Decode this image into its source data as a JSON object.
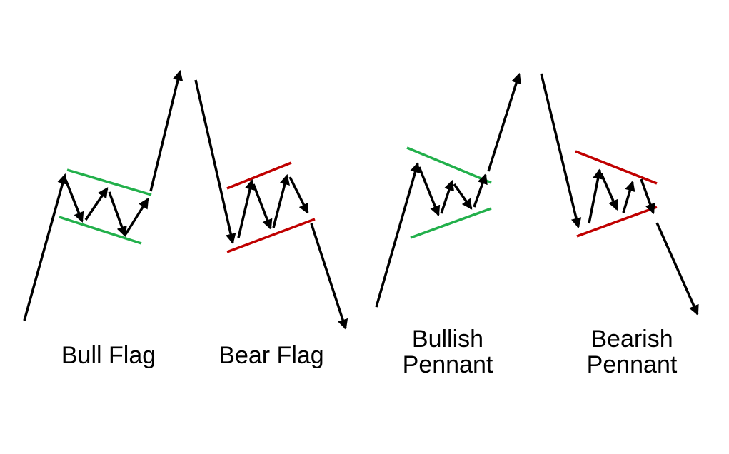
{
  "patterns": [
    {
      "name": "Bull Flag",
      "label_lines": [
        "Bull Flag"
      ],
      "direction": "bullish",
      "consolidation": "flag"
    },
    {
      "name": "Bear Flag",
      "label_lines": [
        "Bear Flag"
      ],
      "direction": "bearish",
      "consolidation": "flag"
    },
    {
      "name": "Bullish Pennant",
      "label_lines": [
        "Bullish",
        "Pennant"
      ],
      "direction": "bullish",
      "consolidation": "pennant"
    },
    {
      "name": "Bearish Pennant",
      "label_lines": [
        "Bearish",
        "Pennant"
      ],
      "direction": "bearish",
      "consolidation": "pennant"
    }
  ],
  "colors": {
    "background": "#ffffff",
    "price_path": "#000000",
    "bullish_trendline": "#22b04b",
    "bearish_trendline": "#c00000",
    "label_text": "#000000"
  }
}
